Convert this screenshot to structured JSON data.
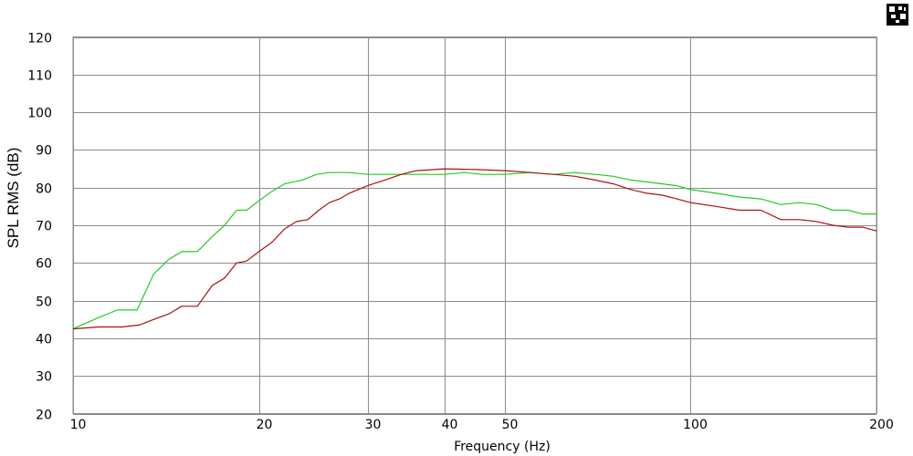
{
  "chart_data": {
    "type": "line",
    "xlabel": "Frequency (Hz)",
    "ylabel": "SPL RMS (dB)",
    "xscale": "log",
    "xlim": [
      10,
      200
    ],
    "ylim": [
      20,
      120
    ],
    "grid": true,
    "x_ticks": [
      10,
      20,
      30,
      40,
      50,
      100,
      200
    ],
    "x_tick_labels": [
      "10",
      "20",
      "30",
      "40",
      "50",
      "100",
      "200"
    ],
    "y_ticks": [
      120,
      110,
      100,
      90,
      80,
      70,
      60,
      50,
      40,
      30,
      20
    ],
    "y_tick_labels": [
      "120",
      "110",
      "100",
      "90",
      "80",
      "70",
      "60",
      "50",
      "40",
      "30",
      "20"
    ],
    "series": [
      {
        "color": "#22cc22",
        "points": [
          [
            10,
            42.5
          ],
          [
            11,
            45.5
          ],
          [
            11.8,
            47.5
          ],
          [
            12.7,
            47.5
          ],
          [
            13.5,
            57
          ],
          [
            14.3,
            61
          ],
          [
            15,
            63
          ],
          [
            15.9,
            63
          ],
          [
            16.8,
            67
          ],
          [
            17.6,
            70
          ],
          [
            18.4,
            74
          ],
          [
            19.1,
            74
          ],
          [
            20,
            76.5
          ],
          [
            21,
            79
          ],
          [
            22,
            81
          ],
          [
            23.5,
            82
          ],
          [
            24.8,
            83.5
          ],
          [
            26,
            84
          ],
          [
            28,
            84
          ],
          [
            30,
            83.5
          ],
          [
            33,
            83.5
          ],
          [
            36,
            83.5
          ],
          [
            40,
            83.5
          ],
          [
            43,
            84
          ],
          [
            46,
            83.5
          ],
          [
            50,
            83.5
          ],
          [
            55,
            84
          ],
          [
            60,
            83.5
          ],
          [
            65,
            84
          ],
          [
            70,
            83.5
          ],
          [
            75,
            83
          ],
          [
            80,
            82
          ],
          [
            85,
            81.5
          ],
          [
            90,
            81
          ],
          [
            95,
            80.5
          ],
          [
            100,
            79.5
          ],
          [
            110,
            78.5
          ],
          [
            120,
            77.5
          ],
          [
            130,
            77
          ],
          [
            140,
            75.5
          ],
          [
            150,
            76
          ],
          [
            160,
            75.5
          ],
          [
            170,
            74
          ],
          [
            180,
            74
          ],
          [
            190,
            73
          ],
          [
            200,
            73
          ]
        ]
      },
      {
        "color": "#aa1111",
        "points": [
          [
            10,
            42.5
          ],
          [
            11,
            43
          ],
          [
            12,
            43
          ],
          [
            12.8,
            43.5
          ],
          [
            13.5,
            45
          ],
          [
            14.3,
            46.5
          ],
          [
            15,
            48.5
          ],
          [
            15.9,
            48.5
          ],
          [
            16.8,
            54
          ],
          [
            17.6,
            56
          ],
          [
            18.4,
            60
          ],
          [
            19.1,
            60.5
          ],
          [
            20,
            63
          ],
          [
            21,
            65.5
          ],
          [
            22,
            69
          ],
          [
            23,
            71
          ],
          [
            24,
            71.5
          ],
          [
            25,
            74
          ],
          [
            26,
            76
          ],
          [
            27,
            77
          ],
          [
            28,
            78.5
          ],
          [
            30,
            80.5
          ],
          [
            32,
            82
          ],
          [
            34,
            83.5
          ],
          [
            36,
            84.5
          ],
          [
            40,
            85
          ],
          [
            45,
            84.8
          ],
          [
            50,
            84.5
          ],
          [
            55,
            84
          ],
          [
            60,
            83.5
          ],
          [
            65,
            83
          ],
          [
            70,
            82
          ],
          [
            75,
            81
          ],
          [
            80,
            79.5
          ],
          [
            85,
            78.5
          ],
          [
            90,
            78
          ],
          [
            95,
            77
          ],
          [
            100,
            76
          ],
          [
            110,
            75
          ],
          [
            120,
            74
          ],
          [
            130,
            74
          ],
          [
            140,
            71.5
          ],
          [
            150,
            71.5
          ],
          [
            160,
            71
          ],
          [
            170,
            70
          ],
          [
            180,
            69.5
          ],
          [
            190,
            69.5
          ],
          [
            200,
            68.5
          ]
        ]
      }
    ]
  },
  "ui": {
    "badge_icon": "qr-icon"
  }
}
